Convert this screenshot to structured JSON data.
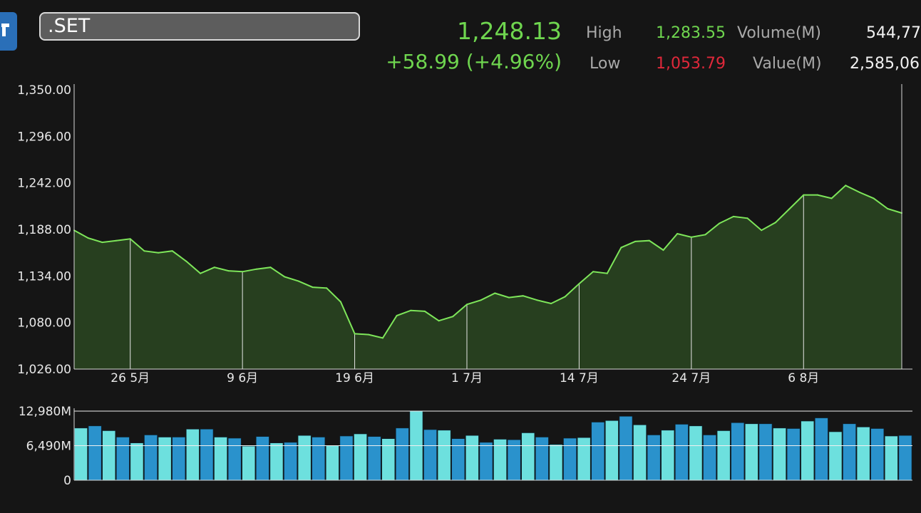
{
  "header": {
    "symbol": ".SET",
    "last": "1,248.13",
    "change": "+58.99 (+4.96%)",
    "high_label": "High",
    "high_value": "1,283.55",
    "low_label": "Low",
    "low_value": "1,053.79",
    "volume_label": "Volume(M)",
    "volume_value": "544,77",
    "value_label": "Value(M)",
    "value_value": "2,585,06"
  },
  "colors": {
    "up": "#6fd64f",
    "down": "#e0283a",
    "line": "#7ee65a",
    "area_fill": "#273f1f",
    "bar_light": "#6de0de",
    "bar_dark": "#2a92cc",
    "background": "#151515"
  },
  "icons": {
    "app": "app-logo-icon"
  },
  "chart_data": [
    {
      "type": "area",
      "ylim": [
        1026,
        1350
      ],
      "yticks": [
        "1,350.00",
        "1,296.00",
        "1,242.00",
        "1,188.00",
        "1,134.00",
        "1,080.00",
        "1,026.00"
      ],
      "ytick_values": [
        1350,
        1296,
        1242,
        1188,
        1134,
        1080,
        1026
      ],
      "xticks": [
        {
          "label": "26 5月",
          "index": 4
        },
        {
          "label": "9 6月",
          "index": 12
        },
        {
          "label": "19 6月",
          "index": 20
        },
        {
          "label": "1 7月",
          "index": 28
        },
        {
          "label": "14 7月",
          "index": 36
        },
        {
          "label": "24 7月",
          "index": 44
        },
        {
          "label": "6 8月",
          "index": 52
        }
      ],
      "values": [
        1187,
        1178,
        1173,
        1175,
        1177,
        1163,
        1161,
        1163,
        1151,
        1137,
        1144,
        1140,
        1139,
        1142,
        1144,
        1133,
        1128,
        1121,
        1120,
        1104,
        1067,
        1066,
        1062,
        1088,
        1094,
        1093,
        1082,
        1087,
        1101,
        1106,
        1114,
        1109,
        1111,
        1106,
        1102,
        1110,
        1125,
        1139,
        1137,
        1167,
        1174,
        1175,
        1164,
        1183,
        1179,
        1182,
        1195,
        1203,
        1201,
        1187,
        1196,
        1212,
        1228,
        1228,
        1224,
        1239,
        1231,
        1224,
        1212,
        1207
      ],
      "grid": false,
      "legend": "none"
    },
    {
      "type": "bar",
      "ylim": [
        0,
        12980
      ],
      "yticks": [
        "12,980M",
        "6,490M",
        "0"
      ],
      "ytick_values": [
        12980,
        6490,
        0
      ],
      "values": [
        9800,
        10200,
        9300,
        8100,
        7000,
        8500,
        8100,
        8100,
        9600,
        9600,
        8100,
        7900,
        6400,
        8200,
        7000,
        7100,
        8400,
        8100,
        6500,
        8300,
        8700,
        8200,
        7800,
        9800,
        12980,
        9500,
        9400,
        7800,
        8400,
        7100,
        7700,
        7600,
        8900,
        8100,
        6700,
        7900,
        8000,
        10900,
        11200,
        12000,
        10400,
        8500,
        9400,
        10500,
        10200,
        8500,
        9300,
        10800,
        10600,
        10600,
        9800,
        9700,
        11100,
        11700,
        9100,
        10600,
        10000,
        9700,
        8300,
        8400
      ],
      "grid": true,
      "legend": "none"
    }
  ]
}
